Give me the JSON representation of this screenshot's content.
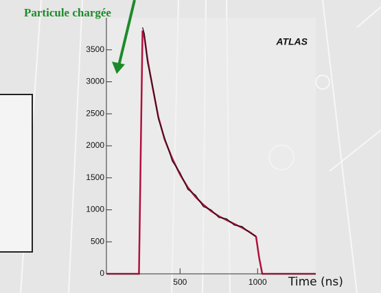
{
  "chart_data": {
    "type": "line",
    "annotation": "Particule chargée",
    "label": "ATLAS",
    "x_label": "Time (ns)",
    "x": [
      25,
      200,
      235,
      250,
      258,
      270,
      290,
      320,
      360,
      400,
      450,
      500,
      550,
      600,
      650,
      700,
      750,
      800,
      850,
      900,
      950,
      990,
      1010,
      1030,
      1060,
      1375
    ],
    "series": [
      {
        "color": "#b0103a",
        "values": [
          0,
          0,
          0,
          2500,
          3800,
          3700,
          3350,
          2950,
          2450,
          2100,
          1800,
          1550,
          1350,
          1200,
          1080,
          980,
          900,
          840,
          780,
          720,
          650,
          580,
          250,
          0,
          0,
          0
        ]
      },
      {
        "color": "#111111",
        "values": [
          null,
          null,
          null,
          null,
          3850,
          3750,
          3300,
          2980,
          2420,
          2130,
          1760,
          1580,
          1320,
          1230,
          1050,
          1000,
          880,
          860,
          760,
          740,
          640,
          590,
          null,
          null,
          null,
          null
        ]
      }
    ],
    "xlim": [
      25,
      1375
    ],
    "xticks": [
      500,
      1000
    ],
    "ylim": [
      0,
      4000
    ],
    "yticks": [
      0,
      500,
      1000,
      1500,
      2000,
      2500,
      3000,
      3500
    ]
  }
}
